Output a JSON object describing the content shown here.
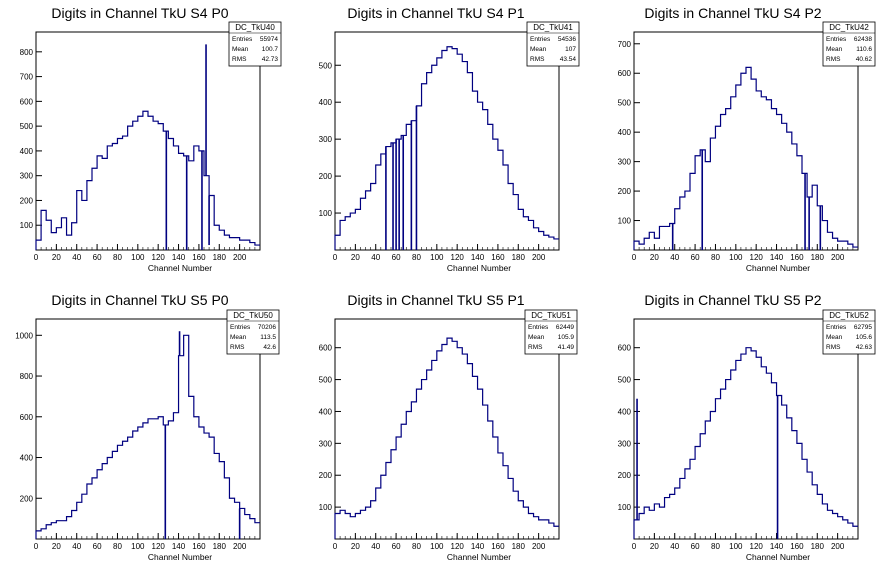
{
  "colors": {
    "line": "#000080",
    "axis": "#000000",
    "background": "#ffffff"
  },
  "chart_data": [
    {
      "type": "histogram",
      "title": "Digits in Channel TkU S4 P0",
      "xlabel": "Channel Number",
      "xlim": [
        0,
        220
      ],
      "ylim": [
        0,
        880
      ],
      "x_ticks": [
        0,
        20,
        40,
        60,
        80,
        100,
        120,
        140,
        160,
        180,
        200
      ],
      "y_ticks": [
        100,
        200,
        300,
        400,
        500,
        600,
        700,
        800
      ],
      "stats": {
        "name": "DC_TkU40",
        "rows": [
          [
            "Entries",
            "55974"
          ],
          [
            "Mean",
            "100.7"
          ],
          [
            "RMS",
            "42.73"
          ]
        ]
      },
      "points": [
        [
          0,
          40
        ],
        [
          5,
          160
        ],
        [
          10,
          120
        ],
        [
          15,
          70
        ],
        [
          20,
          90
        ],
        [
          25,
          130
        ],
        [
          30,
          60
        ],
        [
          35,
          110
        ],
        [
          40,
          240
        ],
        [
          45,
          200
        ],
        [
          50,
          280
        ],
        [
          55,
          330
        ],
        [
          60,
          380
        ],
        [
          65,
          370
        ],
        [
          70,
          420
        ],
        [
          75,
          430
        ],
        [
          80,
          450
        ],
        [
          85,
          460
        ],
        [
          90,
          500
        ],
        [
          95,
          520
        ],
        [
          100,
          540
        ],
        [
          105,
          560
        ],
        [
          110,
          540
        ],
        [
          115,
          520
        ],
        [
          120,
          510
        ],
        [
          125,
          480
        ],
        [
          130,
          450
        ],
        [
          135,
          420
        ],
        [
          140,
          390
        ],
        [
          145,
          380
        ],
        [
          150,
          360
        ],
        [
          155,
          420
        ],
        [
          160,
          400
        ],
        [
          165,
          300
        ],
        [
          170,
          220
        ],
        [
          175,
          100
        ],
        [
          180,
          80
        ],
        [
          185,
          60
        ],
        [
          190,
          50
        ],
        [
          195,
          50
        ],
        [
          200,
          40
        ],
        [
          205,
          40
        ],
        [
          210,
          30
        ],
        [
          215,
          20
        ]
      ],
      "spikes": [
        [
          128,
          0
        ],
        [
          148,
          0
        ],
        [
          163,
          0
        ],
        [
          167,
          830
        ],
        [
          170,
          20
        ]
      ]
    },
    {
      "type": "histogram",
      "title": "Digits in Channel TkU S4 P1",
      "xlabel": "Channel Number",
      "xlim": [
        0,
        220
      ],
      "ylim": [
        0,
        590
      ],
      "x_ticks": [
        0,
        20,
        40,
        60,
        80,
        100,
        120,
        140,
        160,
        180,
        200
      ],
      "y_ticks": [
        100,
        200,
        300,
        400,
        500
      ],
      "stats": {
        "name": "DC_TkU41",
        "rows": [
          [
            "Entries",
            "54536"
          ],
          [
            "Mean",
            "107"
          ],
          [
            "RMS",
            "43.54"
          ]
        ]
      },
      "points": [
        [
          0,
          40
        ],
        [
          5,
          80
        ],
        [
          10,
          90
        ],
        [
          15,
          100
        ],
        [
          20,
          110
        ],
        [
          25,
          140
        ],
        [
          30,
          160
        ],
        [
          35,
          180
        ],
        [
          40,
          230
        ],
        [
          45,
          260
        ],
        [
          50,
          280
        ],
        [
          55,
          290
        ],
        [
          60,
          300
        ],
        [
          65,
          310
        ],
        [
          70,
          340
        ],
        [
          75,
          350
        ],
        [
          80,
          390
        ],
        [
          85,
          450
        ],
        [
          90,
          480
        ],
        [
          95,
          500
        ],
        [
          100,
          520
        ],
        [
          105,
          540
        ],
        [
          110,
          550
        ],
        [
          115,
          545
        ],
        [
          120,
          530
        ],
        [
          125,
          510
        ],
        [
          130,
          480
        ],
        [
          135,
          430
        ],
        [
          140,
          400
        ],
        [
          145,
          380
        ],
        [
          150,
          340
        ],
        [
          155,
          300
        ],
        [
          160,
          270
        ],
        [
          165,
          230
        ],
        [
          170,
          180
        ],
        [
          175,
          150
        ],
        [
          180,
          110
        ],
        [
          185,
          90
        ],
        [
          190,
          80
        ],
        [
          195,
          60
        ],
        [
          200,
          50
        ],
        [
          205,
          40
        ],
        [
          210,
          35
        ],
        [
          215,
          30
        ]
      ],
      "spikes": [
        [
          50,
          0
        ],
        [
          57,
          0
        ],
        [
          60,
          0
        ],
        [
          63,
          0
        ],
        [
          67,
          0
        ],
        [
          75,
          0
        ],
        [
          80,
          0
        ]
      ]
    },
    {
      "type": "histogram",
      "title": "Digits in Channel TkU S4 P2",
      "xlabel": "Channel Number",
      "xlim": [
        0,
        220
      ],
      "ylim": [
        0,
        740
      ],
      "x_ticks": [
        0,
        20,
        40,
        60,
        80,
        100,
        120,
        140,
        160,
        180,
        200
      ],
      "y_ticks": [
        100,
        200,
        300,
        400,
        500,
        600,
        700
      ],
      "stats": {
        "name": "DC_TkU42",
        "rows": [
          [
            "Entries",
            "62438"
          ],
          [
            "Mean",
            "110.6"
          ],
          [
            "RMS",
            "40.62"
          ]
        ]
      },
      "points": [
        [
          0,
          30
        ],
        [
          5,
          20
        ],
        [
          10,
          40
        ],
        [
          15,
          60
        ],
        [
          20,
          40
        ],
        [
          25,
          80
        ],
        [
          30,
          80
        ],
        [
          35,
          90
        ],
        [
          40,
          140
        ],
        [
          45,
          180
        ],
        [
          50,
          200
        ],
        [
          55,
          260
        ],
        [
          60,
          320
        ],
        [
          65,
          340
        ],
        [
          70,
          300
        ],
        [
          75,
          380
        ],
        [
          80,
          420
        ],
        [
          85,
          460
        ],
        [
          90,
          480
        ],
        [
          95,
          520
        ],
        [
          100,
          560
        ],
        [
          105,
          600
        ],
        [
          110,
          620
        ],
        [
          115,
          580
        ],
        [
          120,
          540
        ],
        [
          125,
          520
        ],
        [
          130,
          510
        ],
        [
          135,
          480
        ],
        [
          140,
          460
        ],
        [
          145,
          430
        ],
        [
          150,
          400
        ],
        [
          155,
          360
        ],
        [
          160,
          320
        ],
        [
          165,
          260
        ],
        [
          170,
          180
        ],
        [
          175,
          220
        ],
        [
          180,
          150
        ],
        [
          185,
          100
        ],
        [
          190,
          60
        ],
        [
          195,
          40
        ],
        [
          200,
          30
        ],
        [
          205,
          30
        ],
        [
          210,
          20
        ],
        [
          215,
          10
        ]
      ],
      "spikes": [
        [
          38,
          0
        ],
        [
          67,
          0
        ],
        [
          168,
          0
        ],
        [
          172,
          0
        ],
        [
          183,
          0
        ]
      ]
    },
    {
      "type": "histogram",
      "title": "Digits in Channel TkU S5 P0",
      "xlabel": "Channel Number",
      "xlim": [
        0,
        220
      ],
      "ylim": [
        0,
        1080
      ],
      "x_ticks": [
        0,
        20,
        40,
        60,
        80,
        100,
        120,
        140,
        160,
        180,
        200
      ],
      "y_ticks": [
        200,
        400,
        600,
        800,
        1000
      ],
      "stats": {
        "name": "DC_TkU50",
        "rows": [
          [
            "Entries",
            "70206"
          ],
          [
            "Mean",
            "113.5"
          ],
          [
            "RMS",
            "42.6"
          ]
        ]
      },
      "points": [
        [
          0,
          40
        ],
        [
          5,
          50
        ],
        [
          10,
          70
        ],
        [
          15,
          80
        ],
        [
          20,
          90
        ],
        [
          25,
          90
        ],
        [
          30,
          110
        ],
        [
          35,
          140
        ],
        [
          40,
          180
        ],
        [
          45,
          220
        ],
        [
          50,
          270
        ],
        [
          55,
          300
        ],
        [
          60,
          340
        ],
        [
          65,
          370
        ],
        [
          70,
          400
        ],
        [
          75,
          430
        ],
        [
          80,
          460
        ],
        [
          85,
          480
        ],
        [
          90,
          500
        ],
        [
          95,
          530
        ],
        [
          100,
          550
        ],
        [
          105,
          570
        ],
        [
          110,
          590
        ],
        [
          115,
          590
        ],
        [
          120,
          600
        ],
        [
          125,
          560
        ],
        [
          130,
          580
        ],
        [
          135,
          620
        ],
        [
          140,
          900
        ],
        [
          145,
          1000
        ],
        [
          150,
          700
        ],
        [
          155,
          600
        ],
        [
          160,
          550
        ],
        [
          165,
          520
        ],
        [
          170,
          500
        ],
        [
          175,
          420
        ],
        [
          180,
          380
        ],
        [
          185,
          300
        ],
        [
          190,
          200
        ],
        [
          195,
          180
        ],
        [
          200,
          150
        ],
        [
          205,
          120
        ],
        [
          210,
          100
        ],
        [
          215,
          80
        ]
      ],
      "spikes": [
        [
          127,
          0
        ],
        [
          141,
          1020
        ],
        [
          146,
          1000
        ],
        [
          200,
          0
        ]
      ]
    },
    {
      "type": "histogram",
      "title": "Digits in Channel TkU S5 P1",
      "xlabel": "Channel Number",
      "xlim": [
        0,
        220
      ],
      "ylim": [
        0,
        690
      ],
      "x_ticks": [
        0,
        20,
        40,
        60,
        80,
        100,
        120,
        140,
        160,
        180,
        200
      ],
      "y_ticks": [
        100,
        200,
        300,
        400,
        500,
        600
      ],
      "stats": {
        "name": "DC_TkU51",
        "rows": [
          [
            "Entries",
            "62449"
          ],
          [
            "Mean",
            "105.9"
          ],
          [
            "RMS",
            "41.49"
          ]
        ]
      },
      "points": [
        [
          0,
          80
        ],
        [
          5,
          90
        ],
        [
          10,
          80
        ],
        [
          15,
          70
        ],
        [
          20,
          80
        ],
        [
          25,
          90
        ],
        [
          30,
          100
        ],
        [
          35,
          120
        ],
        [
          40,
          160
        ],
        [
          45,
          200
        ],
        [
          50,
          240
        ],
        [
          55,
          280
        ],
        [
          60,
          320
        ],
        [
          65,
          360
        ],
        [
          70,
          400
        ],
        [
          75,
          430
        ],
        [
          80,
          470
        ],
        [
          85,
          500
        ],
        [
          90,
          530
        ],
        [
          95,
          560
        ],
        [
          100,
          590
        ],
        [
          105,
          610
        ],
        [
          110,
          630
        ],
        [
          115,
          620
        ],
        [
          120,
          600
        ],
        [
          125,
          580
        ],
        [
          130,
          550
        ],
        [
          135,
          510
        ],
        [
          140,
          470
        ],
        [
          145,
          420
        ],
        [
          150,
          370
        ],
        [
          155,
          320
        ],
        [
          160,
          270
        ],
        [
          165,
          230
        ],
        [
          170,
          190
        ],
        [
          175,
          150
        ],
        [
          180,
          120
        ],
        [
          185,
          100
        ],
        [
          190,
          80
        ],
        [
          195,
          70
        ],
        [
          200,
          60
        ],
        [
          205,
          60
        ],
        [
          210,
          50
        ],
        [
          215,
          40
        ]
      ],
      "spikes": []
    },
    {
      "type": "histogram",
      "title": "Digits in Channel TkU S5 P2",
      "xlabel": "Channel Number",
      "xlim": [
        0,
        220
      ],
      "ylim": [
        0,
        690
      ],
      "x_ticks": [
        0,
        20,
        40,
        60,
        80,
        100,
        120,
        140,
        160,
        180,
        200
      ],
      "y_ticks": [
        100,
        200,
        300,
        400,
        500,
        600
      ],
      "stats": {
        "name": "DC_TkU52",
        "rows": [
          [
            "Entries",
            "62795"
          ],
          [
            "Mean",
            "105.6"
          ],
          [
            "RMS",
            "42.63"
          ]
        ]
      },
      "points": [
        [
          0,
          60
        ],
        [
          5,
          80
        ],
        [
          10,
          100
        ],
        [
          15,
          90
        ],
        [
          20,
          110
        ],
        [
          25,
          100
        ],
        [
          30,
          130
        ],
        [
          35,
          140
        ],
        [
          40,
          160
        ],
        [
          45,
          190
        ],
        [
          50,
          220
        ],
        [
          55,
          250
        ],
        [
          60,
          290
        ],
        [
          65,
          330
        ],
        [
          70,
          370
        ],
        [
          75,
          400
        ],
        [
          80,
          440
        ],
        [
          85,
          470
        ],
        [
          90,
          500
        ],
        [
          95,
          530
        ],
        [
          100,
          560
        ],
        [
          105,
          580
        ],
        [
          110,
          600
        ],
        [
          115,
          590
        ],
        [
          120,
          570
        ],
        [
          125,
          540
        ],
        [
          130,
          520
        ],
        [
          135,
          490
        ],
        [
          140,
          450
        ],
        [
          145,
          420
        ],
        [
          150,
          380
        ],
        [
          155,
          340
        ],
        [
          160,
          300
        ],
        [
          165,
          250
        ],
        [
          170,
          210
        ],
        [
          175,
          170
        ],
        [
          180,
          140
        ],
        [
          185,
          110
        ],
        [
          190,
          90
        ],
        [
          195,
          80
        ],
        [
          200,
          70
        ],
        [
          205,
          60
        ],
        [
          210,
          50
        ],
        [
          215,
          40
        ]
      ],
      "spikes": [
        [
          3,
          440
        ],
        [
          141,
          0
        ]
      ]
    }
  ]
}
